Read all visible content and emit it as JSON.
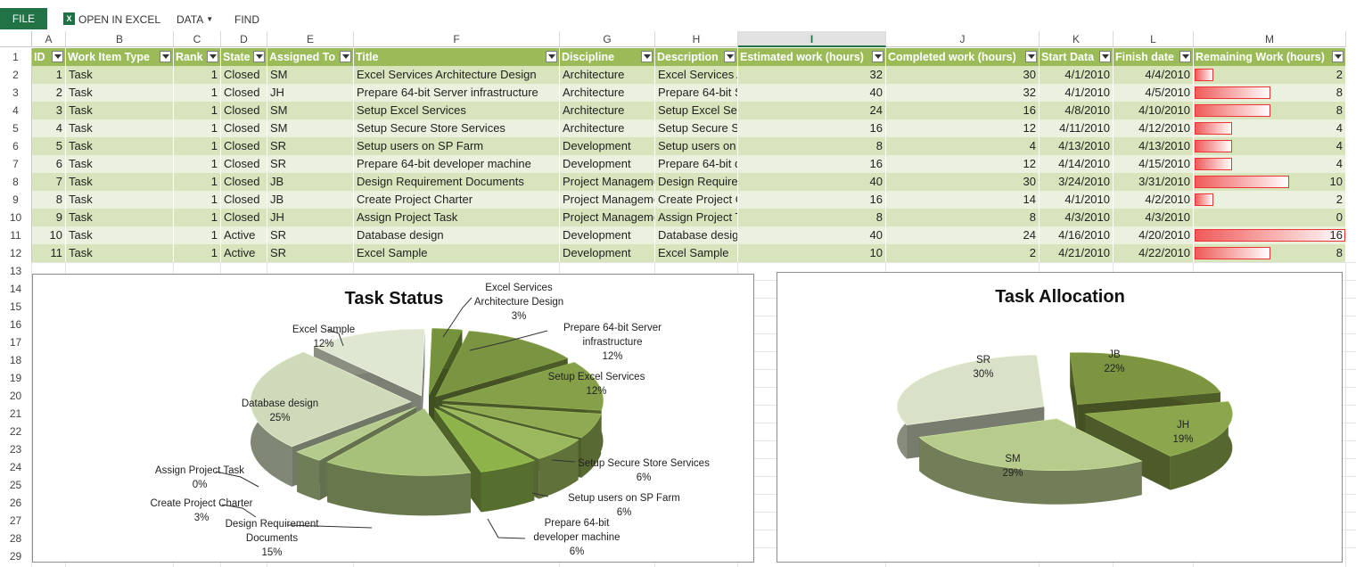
{
  "ribbon": {
    "file": "FILE",
    "open_in_excel": "OPEN IN EXCEL",
    "data": "DATA",
    "find": "FIND",
    "excel_icon": "excel-icon"
  },
  "columns": [
    "A",
    "B",
    "C",
    "D",
    "E",
    "F",
    "G",
    "H",
    "I",
    "J",
    "K",
    "L",
    "M"
  ],
  "selected_column": "I",
  "rows": [
    "1",
    "2",
    "3",
    "4",
    "5",
    "6",
    "7",
    "8",
    "9",
    "10",
    "11",
    "12",
    "13",
    "14",
    "15",
    "16",
    "17",
    "18",
    "19",
    "20",
    "21",
    "22",
    "23",
    "24",
    "25",
    "26",
    "27",
    "28",
    "29"
  ],
  "table": {
    "headers": [
      "ID",
      "Work Item Type",
      "Rank",
      "State",
      "Assigned To",
      "Title",
      "Discipline",
      "Description",
      "Estimated work (hours)",
      "Completed work (hours)",
      "Start Data",
      "Finish date",
      "Remaining Work (hours)"
    ],
    "rows": [
      [
        "1",
        "Task",
        "1",
        "Closed",
        "SM",
        "Excel Services Architecture Design",
        "Architecture",
        "Excel Services A",
        "32",
        "30",
        "4/1/2010",
        "4/4/2010",
        "2"
      ],
      [
        "2",
        "Task",
        "1",
        "Closed",
        "JH",
        "Prepare 64-bit Server infrastructure",
        "Architecture",
        "Prepare 64-bit S",
        "40",
        "32",
        "4/1/2010",
        "4/5/2010",
        "8"
      ],
      [
        "3",
        "Task",
        "1",
        "Closed",
        "SM",
        "Setup Excel Services",
        "Architecture",
        "Setup Excel Serv",
        "24",
        "16",
        "4/8/2010",
        "4/10/2010",
        "8"
      ],
      [
        "4",
        "Task",
        "1",
        "Closed",
        "SM",
        "Setup Secure Store Services",
        "Architecture",
        "Setup Secure Sto",
        "16",
        "12",
        "4/11/2010",
        "4/12/2010",
        "4"
      ],
      [
        "5",
        "Task",
        "1",
        "Closed",
        "SR",
        "Setup users on SP Farm",
        "Development",
        "Setup users on S",
        "8",
        "4",
        "4/13/2010",
        "4/13/2010",
        "4"
      ],
      [
        "6",
        "Task",
        "1",
        "Closed",
        "SR",
        "Prepare 64-bit developer machine",
        "Development",
        "Prepare 64-bit d",
        "16",
        "12",
        "4/14/2010",
        "4/15/2010",
        "4"
      ],
      [
        "7",
        "Task",
        "1",
        "Closed",
        "JB",
        "Design Requirement Documents",
        "Project Manageme",
        "Design Requiren",
        "40",
        "30",
        "3/24/2010",
        "3/31/2010",
        "10"
      ],
      [
        "8",
        "Task",
        "1",
        "Closed",
        "JB",
        "Create Project Charter",
        "Project Manageme",
        "Create Project C",
        "16",
        "14",
        "4/1/2010",
        "4/2/2010",
        "2"
      ],
      [
        "9",
        "Task",
        "1",
        "Closed",
        "JH",
        "Assign Project Task",
        "Project Manageme",
        "Assign Project T",
        "8",
        "8",
        "4/3/2010",
        "4/3/2010",
        "0"
      ],
      [
        "10",
        "Task",
        "1",
        "Active",
        "SR",
        "Database design",
        "Development",
        "Database desigr",
        "40",
        "24",
        "4/16/2010",
        "4/20/2010",
        "16"
      ],
      [
        "11",
        "Task",
        "1",
        "Active",
        "SR",
        "Excel Sample",
        "Development",
        "Excel Sample",
        "10",
        "2",
        "4/21/2010",
        "4/22/2010",
        "8"
      ]
    ]
  },
  "colors": {
    "header_bg": "#9bbb59",
    "row_dark": "#d8e4bc",
    "row_light": "#ebf1de",
    "accent": "#217346",
    "databar": "#f05a5a"
  },
  "chart_data": [
    {
      "type": "pie",
      "title": "Task Status",
      "style": "3d-exploded",
      "categories": [
        "Excel Services Architecture Design",
        "Prepare 64-bit Server infrastructure",
        "Setup Excel Services",
        "Setup Secure Store Services",
        "Setup users on SP Farm",
        "Prepare 64-bit developer machine",
        "Design Requirement Documents",
        "Create Project Charter",
        "Assign Project Task",
        "Database design",
        "Excel Sample"
      ],
      "values": [
        3,
        12,
        12,
        6,
        6,
        6,
        15,
        3,
        0,
        25,
        12
      ],
      "labels": [
        [
          "Excel Services",
          "Architecture Design",
          "3%"
        ],
        [
          "Prepare 64-bit Server",
          "infrastructure",
          "12%"
        ],
        [
          "Setup Excel Services",
          "12%"
        ],
        [
          "Setup Secure Store Services",
          "6%"
        ],
        [
          "Setup users on SP Farm",
          "6%"
        ],
        [
          "Prepare 64-bit",
          "developer machine",
          "6%"
        ],
        [
          "Design Requirement",
          "Documents",
          "15%"
        ],
        [
          "Create Project Charter",
          "3%"
        ],
        [
          "Assign Project Task",
          "0%"
        ],
        [
          "Database design",
          "25%"
        ],
        [
          "Excel Sample",
          "12%"
        ]
      ]
    },
    {
      "type": "pie",
      "title": "Task Allocation",
      "style": "3d-exploded",
      "categories": [
        "JB",
        "JH",
        "SM",
        "SR"
      ],
      "values": [
        22,
        19,
        29,
        30
      ],
      "labels": [
        [
          "JB",
          "22%"
        ],
        [
          "JH",
          "19%"
        ],
        [
          "SM",
          "29%"
        ],
        [
          "SR",
          "30%"
        ]
      ]
    }
  ]
}
